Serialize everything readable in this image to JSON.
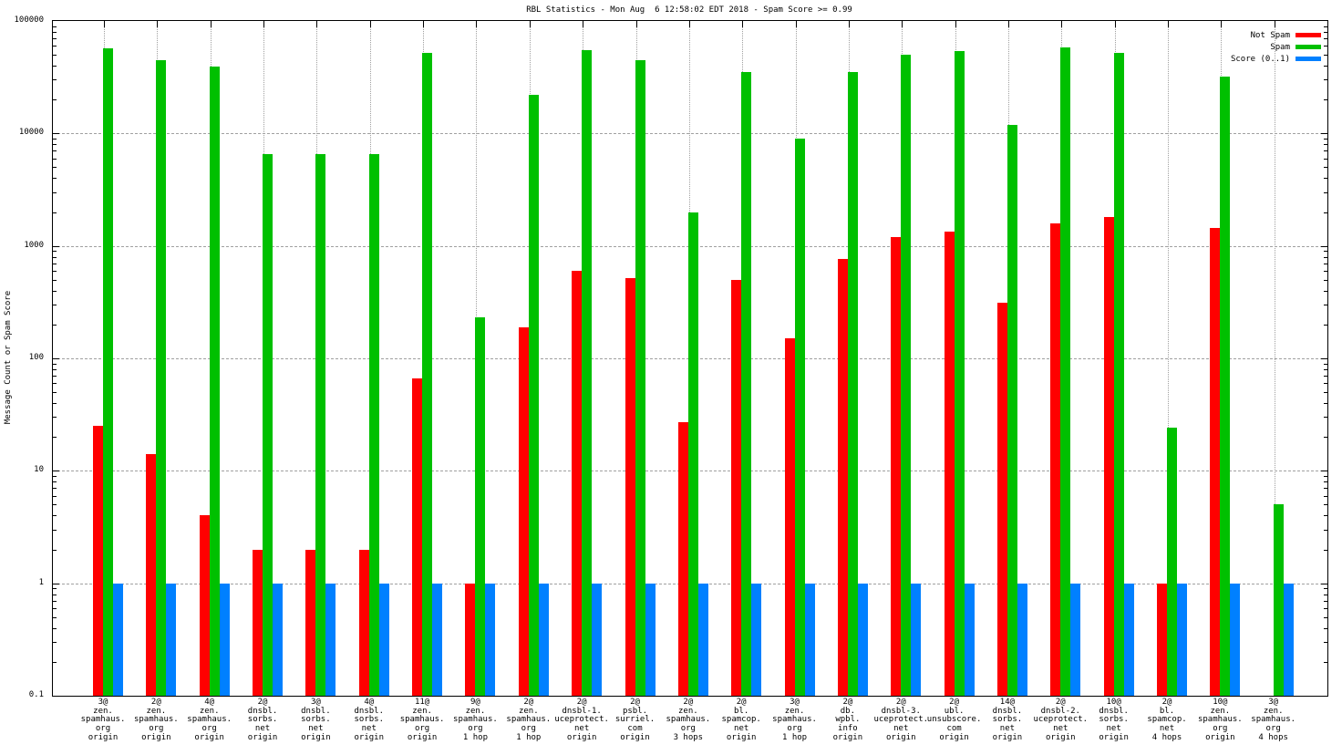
{
  "chart_data": {
    "type": "bar",
    "title": "RBL Statistics - Mon Aug  6 12:58:02 EDT 2018 - Spam Score >= 0.99",
    "ylabel": "Message Count or Spam Score",
    "xlabel": "",
    "yscale": "log",
    "ylim": [
      0.1,
      100000
    ],
    "ytick_labels": [
      "100000",
      "10000",
      "1000",
      "100",
      "10",
      "1",
      "0.1"
    ],
    "grid": "on",
    "legend_position": "top-right",
    "legend": [
      {
        "label": "Not Spam",
        "color": "#ff0000"
      },
      {
        "label": "Spam",
        "color": "#00c000"
      },
      {
        "label": "Score (0..1)",
        "color": "#0080ff"
      }
    ],
    "categories": [
      [
        "3@",
        "zen.",
        "spamhaus.",
        "org",
        "origin"
      ],
      [
        "2@",
        "zen.",
        "spamhaus.",
        "org",
        "origin"
      ],
      [
        "4@",
        "zen.",
        "spamhaus.",
        "org",
        "origin"
      ],
      [
        "2@",
        "dnsbl.",
        "sorbs.",
        "net",
        "origin"
      ],
      [
        "3@",
        "dnsbl.",
        "sorbs.",
        "net",
        "origin"
      ],
      [
        "4@",
        "dnsbl.",
        "sorbs.",
        "net",
        "origin"
      ],
      [
        "11@",
        "zen.",
        "spamhaus.",
        "org",
        "origin"
      ],
      [
        "9@",
        "zen.",
        "spamhaus.",
        "org",
        "1 hop"
      ],
      [
        "2@",
        "zen.",
        "spamhaus.",
        "org",
        "1 hop"
      ],
      [
        "2@",
        "dnsbl-1.",
        "uceprotect.",
        "net",
        "origin"
      ],
      [
        "2@",
        "psbl.",
        "surriel.",
        "com",
        "origin"
      ],
      [
        "2@",
        "zen.",
        "spamhaus.",
        "org",
        "3 hops"
      ],
      [
        "2@",
        "bl.",
        "spamcop.",
        "net",
        "origin"
      ],
      [
        "3@",
        "zen.",
        "spamhaus.",
        "org",
        "1 hop"
      ],
      [
        "2@",
        "db.",
        "wpbl.",
        "info",
        "origin"
      ],
      [
        "2@",
        "dnsbl-3.",
        "uceprotect.",
        "net",
        "origin"
      ],
      [
        "2@",
        "ubl.",
        "unsubscore.",
        "com",
        "origin"
      ],
      [
        "14@",
        "dnsbl.",
        "sorbs.",
        "net",
        "origin"
      ],
      [
        "2@",
        "dnsbl-2.",
        "uceprotect.",
        "net",
        "origin"
      ],
      [
        "10@",
        "dnsbl.",
        "sorbs.",
        "net",
        "origin"
      ],
      [
        "2@",
        "bl.",
        "spamcop.",
        "net",
        "4 hops"
      ],
      [
        "10@",
        "zen.",
        "spamhaus.",
        "org",
        "origin"
      ],
      [
        "3@",
        "zen.",
        "spamhaus.",
        "org",
        "4 hops"
      ]
    ],
    "series": [
      {
        "name": "Not Spam",
        "color": "#ff0000",
        "values": [
          25,
          14,
          4,
          2,
          2,
          2,
          66,
          1,
          190,
          600,
          520,
          27,
          500,
          150,
          760,
          1200,
          1350,
          310,
          1600,
          1800,
          1,
          1450,
          0
        ]
      },
      {
        "name": "Spam",
        "color": "#00c000",
        "values": [
          57000,
          45000,
          39000,
          6500,
          6500,
          6500,
          52000,
          230,
          22000,
          55000,
          45000,
          2000,
          35000,
          9000,
          35000,
          50000,
          54000,
          12000,
          58000,
          52000,
          24,
          32000,
          5
        ]
      },
      {
        "name": "Score (0..1)",
        "color": "#0080ff",
        "values": [
          1,
          1,
          1,
          1,
          1,
          1,
          1,
          1,
          1,
          1,
          1,
          1,
          1,
          1,
          1,
          1,
          1,
          1,
          1,
          1,
          1,
          1,
          1
        ]
      }
    ]
  }
}
